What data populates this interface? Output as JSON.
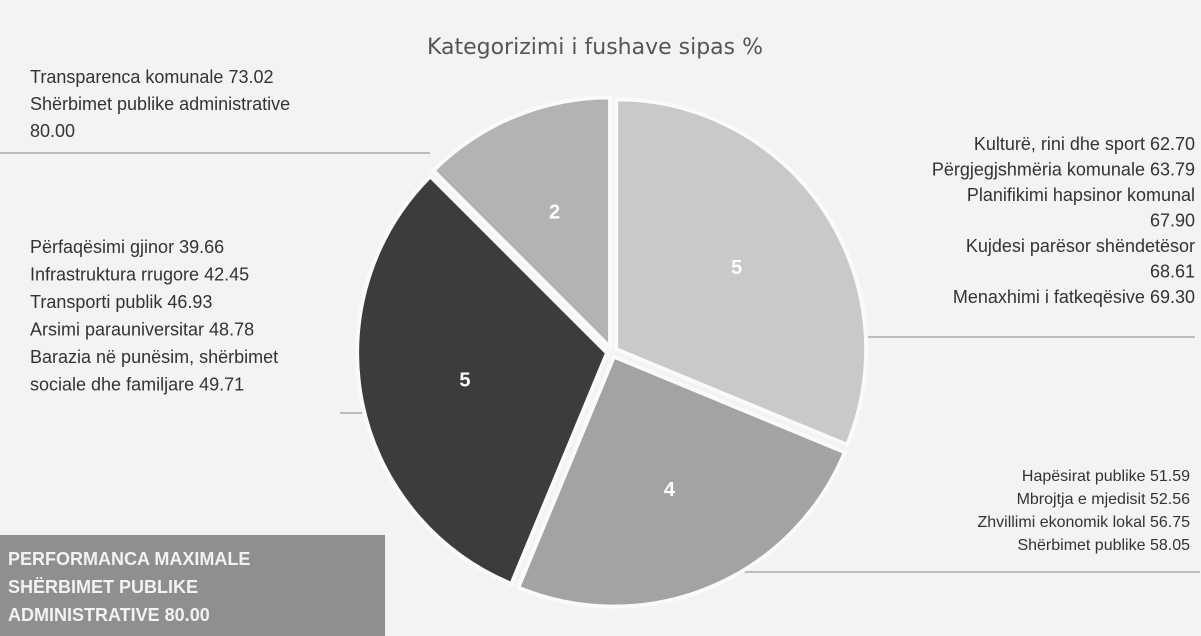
{
  "chart_data": {
    "type": "pie",
    "title": "Kategorizimi i fushave sipas %",
    "categories": [
      null,
      null,
      null,
      null
    ],
    "values": [
      5,
      4,
      5,
      2
    ],
    "colors": [
      "#c9c9c9",
      "#a3a3a3",
      "#3c3c3c",
      "#b3b3b3"
    ],
    "annotations": [
      {
        "lines": [
          "Transparenca komunale 73.02",
          "Shërbimet publike administrative",
          "80.00"
        ]
      },
      {
        "lines": [
          "Kulturë, rini dhe sport 62.70",
          "Përgjegjshmëria komunale 63.79",
          "Planifikimi hapsinor komunal",
          "67.90",
          "Kujdesi parësor shëndetësor",
          "68.61",
          "Menaxhimi i fatkeqësive 69.30"
        ]
      },
      {
        "lines": [
          "Përfaqësimi gjinor 39.66",
          "Infrastruktura rrugore 42.45",
          "Transporti publik 46.93",
          "Arsimi parauniversitar 48.78",
          "Barazia në punësim, shërbimet",
          "sociale dhe familjare 49.71"
        ]
      },
      {
        "lines": [
          "Hapësirat publike 51.59",
          "Mbrojtja e mjedisit 52.56",
          "Zhvillimi ekonomik lokal 56.75",
          "Shërbimet publike 58.05"
        ]
      }
    ],
    "highlight": [
      "PERFORMANCA MAXIMALE",
      "SHËRBIMET PUBLIKE",
      "ADMINISTRATIVE 80.00"
    ]
  }
}
